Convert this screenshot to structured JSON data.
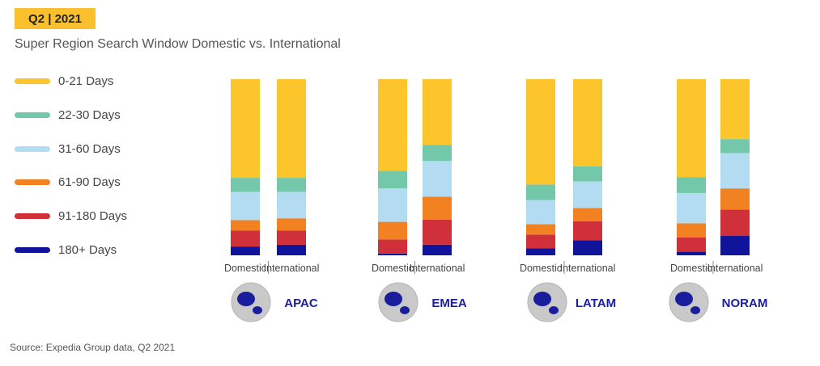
{
  "header": {
    "badge": "Q2 | 2021"
  },
  "subtitle": "Super Region Search Window Domestic vs. International",
  "source": "Source: Expedia Group data, Q2 2021",
  "colors": {
    "0-21 Days": "#fbc52b",
    "22-30 Days": "#73c8a9",
    "31-60 Days": "#b3dcf2",
    "61-90 Days": "#f28122",
    "91-180 Days": "#d0303a",
    "180+ Days": "#10149a"
  },
  "chart_data": {
    "type": "bar",
    "stacked": true,
    "percent": true,
    "groups": [
      "APAC",
      "EMEA",
      "LATAM",
      "NORAM"
    ],
    "categories": [
      "Domestic",
      "International"
    ],
    "series": [
      {
        "name": "0-21 Days",
        "values": [
          [
            56,
            56
          ],
          [
            52,
            37
          ],
          [
            61,
            46
          ],
          [
            55,
            34
          ]
        ]
      },
      {
        "name": "22-30 Days",
        "values": [
          [
            8,
            8
          ],
          [
            10,
            9
          ],
          [
            9,
            8
          ],
          [
            9,
            8
          ]
        ]
      },
      {
        "name": "31-60 Days",
        "values": [
          [
            16,
            15
          ],
          [
            19,
            20
          ],
          [
            14,
            14
          ],
          [
            17,
            20
          ]
        ]
      },
      {
        "name": "61-90 Days",
        "values": [
          [
            6,
            7
          ],
          [
            10,
            13
          ],
          [
            6,
            7
          ],
          [
            8,
            12
          ]
        ]
      },
      {
        "name": "91-180 Days",
        "values": [
          [
            9,
            8
          ],
          [
            8,
            14
          ],
          [
            8,
            10
          ],
          [
            8,
            15
          ]
        ]
      },
      {
        "name": "180+ Days",
        "values": [
          [
            5,
            6
          ],
          [
            1,
            6
          ],
          [
            4,
            8
          ],
          [
            2,
            11
          ]
        ]
      }
    ],
    "legend_position": "left",
    "grid": false
  }
}
